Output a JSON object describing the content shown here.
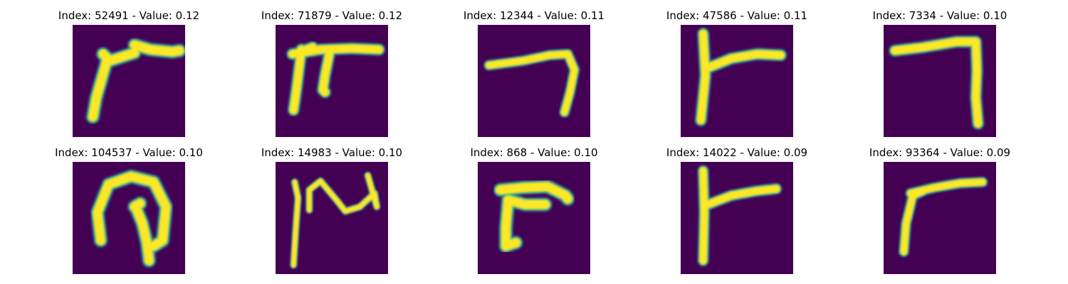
{
  "colors": {
    "background": "#440154",
    "stroke_core": "#fde725",
    "stroke_mid": "#7ad151",
    "stroke_edge": "#21918c",
    "stroke_outer": "#3b528b"
  },
  "panels": [
    {
      "title": "Index: 52491 - Value: 0.12",
      "strokes": [
        [
          [
            0.55,
            0.82
          ],
          [
            0.69,
            0.78
          ],
          [
            0.89,
            0.76
          ],
          [
            0.95,
            0.77
          ]
        ],
        [
          [
            0.31,
            0.7
          ],
          [
            0.21,
            0.35
          ],
          [
            0.18,
            0.18
          ]
        ],
        [
          [
            0.27,
            0.74
          ],
          [
            0.33,
            0.68
          ],
          [
            0.55,
            0.75
          ]
        ]
      ],
      "width": 0.085
    },
    {
      "title": "Index: 71879 - Value: 0.12",
      "strokes": [
        [
          [
            0.15,
            0.74
          ],
          [
            0.4,
            0.78
          ],
          [
            0.68,
            0.79
          ],
          [
            0.92,
            0.78
          ]
        ],
        [
          [
            0.23,
            0.78
          ],
          [
            0.19,
            0.45
          ],
          [
            0.16,
            0.24
          ]
        ],
        [
          [
            0.48,
            0.75
          ],
          [
            0.44,
            0.55
          ],
          [
            0.42,
            0.42
          ],
          [
            0.44,
            0.4
          ]
        ],
        [
          [
            0.25,
            0.77
          ],
          [
            0.33,
            0.8
          ]
        ]
      ],
      "width": 0.075
    },
    {
      "title": "Index: 12344 - Value: 0.11",
      "strokes": [
        [
          [
            0.1,
            0.64
          ],
          [
            0.4,
            0.68
          ],
          [
            0.64,
            0.73
          ],
          [
            0.8,
            0.74
          ],
          [
            0.86,
            0.6
          ],
          [
            0.82,
            0.4
          ],
          [
            0.77,
            0.22
          ]
        ]
      ],
      "width": 0.065
    },
    {
      "title": "Index: 47586 - Value: 0.11",
      "strokes": [
        [
          [
            0.2,
            0.92
          ],
          [
            0.22,
            0.55
          ],
          [
            0.18,
            0.15
          ]
        ],
        [
          [
            0.25,
            0.62
          ],
          [
            0.45,
            0.7
          ],
          [
            0.68,
            0.74
          ],
          [
            0.89,
            0.73
          ]
        ]
      ],
      "width": 0.075
    },
    {
      "title": "Index: 7334 - Value: 0.10",
      "strokes": [
        [
          [
            0.1,
            0.77
          ],
          [
            0.35,
            0.8
          ],
          [
            0.65,
            0.85
          ],
          [
            0.82,
            0.85
          ],
          [
            0.83,
            0.6
          ],
          [
            0.82,
            0.35
          ],
          [
            0.84,
            0.12
          ]
        ]
      ],
      "width": 0.075
    },
    {
      "title": "Index: 104537 - Value: 0.10",
      "strokes": [
        [
          [
            0.25,
            0.3
          ],
          [
            0.22,
            0.55
          ],
          [
            0.32,
            0.8
          ],
          [
            0.52,
            0.87
          ],
          [
            0.72,
            0.82
          ],
          [
            0.83,
            0.6
          ],
          [
            0.8,
            0.3
          ],
          [
            0.72,
            0.25
          ]
        ],
        [
          [
            0.56,
            0.6
          ],
          [
            0.62,
            0.45
          ],
          [
            0.66,
            0.28
          ],
          [
            0.68,
            0.12
          ]
        ],
        [
          [
            0.55,
            0.6
          ],
          [
            0.6,
            0.63
          ]
        ]
      ],
      "width": 0.085
    },
    {
      "title": "Index: 14983 - Value: 0.10",
      "strokes": [
        [
          [
            0.16,
            0.08
          ],
          [
            0.18,
            0.4
          ],
          [
            0.2,
            0.68
          ],
          [
            0.17,
            0.82
          ]
        ],
        [
          [
            0.3,
            0.57
          ],
          [
            0.3,
            0.75
          ],
          [
            0.4,
            0.83
          ],
          [
            0.55,
            0.65
          ],
          [
            0.62,
            0.56
          ],
          [
            0.75,
            0.6
          ],
          [
            0.88,
            0.72
          ],
          [
            0.9,
            0.6
          ],
          [
            0.82,
            0.88
          ]
        ]
      ],
      "width": 0.045
    },
    {
      "title": "Index: 868 - Value: 0.10",
      "strokes": [
        [
          [
            0.2,
            0.75
          ],
          [
            0.4,
            0.77
          ],
          [
            0.62,
            0.78
          ],
          [
            0.78,
            0.7
          ],
          [
            0.8,
            0.67
          ]
        ],
        [
          [
            0.27,
            0.65
          ],
          [
            0.25,
            0.42
          ],
          [
            0.25,
            0.25
          ]
        ],
        [
          [
            0.25,
            0.25
          ],
          [
            0.34,
            0.28
          ]
        ],
        [
          [
            0.27,
            0.66
          ],
          [
            0.42,
            0.62
          ],
          [
            0.6,
            0.62
          ]
        ]
      ],
      "width": 0.085
    },
    {
      "title": "Index: 14022 - Value: 0.09",
      "strokes": [
        [
          [
            0.2,
            0.92
          ],
          [
            0.21,
            0.55
          ],
          [
            0.2,
            0.12
          ]
        ],
        [
          [
            0.24,
            0.62
          ],
          [
            0.45,
            0.7
          ],
          [
            0.67,
            0.74
          ],
          [
            0.85,
            0.76
          ]
        ]
      ],
      "width": 0.07
    },
    {
      "title": "Index: 93364 - Value: 0.09",
      "strokes": [
        [
          [
            0.24,
            0.72
          ],
          [
            0.45,
            0.77
          ],
          [
            0.68,
            0.81
          ],
          [
            0.88,
            0.82
          ]
        ],
        [
          [
            0.26,
            0.7
          ],
          [
            0.2,
            0.45
          ],
          [
            0.18,
            0.2
          ]
        ],
        [
          [
            0.26,
            0.7
          ],
          [
            0.35,
            0.74
          ]
        ]
      ],
      "width": 0.065
    }
  ]
}
